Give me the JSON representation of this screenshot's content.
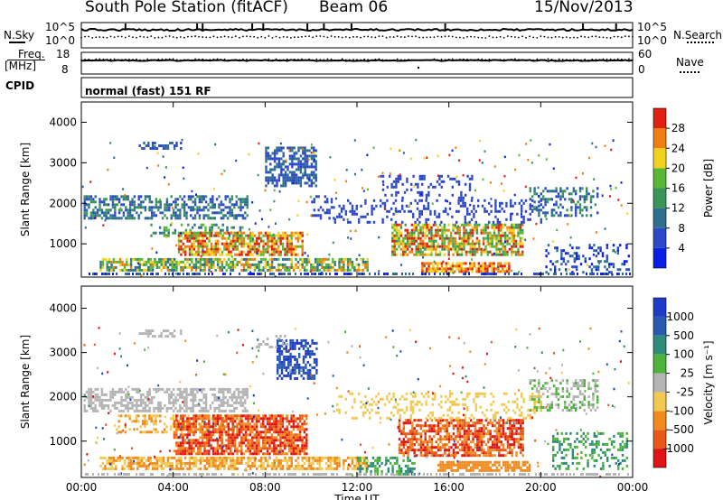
{
  "header": {
    "station": "South Pole Station (fitACF)",
    "beam": "Beam 06",
    "date": "15/Nov/2013"
  },
  "top_panels": {
    "nsky_label": "N.Sky",
    "nsearch_label": "N.Search",
    "noise_ticks": [
      "10^5",
      "10^0"
    ],
    "freq_label_1": "Freq.",
    "freq_label_2": "[MHz]",
    "freq_ticks": [
      "18",
      "8"
    ],
    "nave_label": "Nave",
    "nave_ticks": [
      "60",
      "0"
    ],
    "cpid_label": "CPID",
    "cpid_text": "normal (fast) 151 RF"
  },
  "chart_data": [
    {
      "type": "heatmap",
      "title": "",
      "ylabel": "Slant Range [km]",
      "xlabel": "",
      "yticks": [
        "1000",
        "2000",
        "3000",
        "4000"
      ],
      "ylim": [
        180,
        4500
      ],
      "xlim_hours": [
        0,
        24
      ],
      "colorbar": {
        "label": "Power [dB]",
        "ticks": [
          "4",
          "8",
          "12",
          "16",
          "20",
          "24",
          "28"
        ],
        "range": [
          0,
          32
        ],
        "colors": [
          "#0a1ee6",
          "#2c48c8",
          "#2e6e8e",
          "#3a9656",
          "#58b836",
          "#f0d21e",
          "#f07d10",
          "#e02010"
        ]
      },
      "echo_regions_description": "Rows of echoes: 1600–2200 km (00–07 UT), 2400–3400 km near 08–10 UT, 300–1200 km band throughout with strongest power near 06–10 UT and 14–19 UT"
    },
    {
      "type": "heatmap",
      "title": "",
      "ylabel": "Slant Range [km]",
      "xlabel": "Time UT",
      "xticks": [
        "00:00",
        "04:00",
        "08:00",
        "12:00",
        "16:00",
        "20:00",
        "00:00"
      ],
      "yticks": [
        "1000",
        "2000",
        "3000",
        "4000"
      ],
      "ylim": [
        180,
        4500
      ],
      "xlim_hours": [
        0,
        24
      ],
      "colorbar": {
        "label": "Velocity [m s^-1]",
        "ticks": [
          "1000",
          "500",
          "100",
          "25",
          "-25",
          "-100",
          "-500",
          "-1000"
        ],
        "colors": [
          "#1e3cc8",
          "#2a5ab0",
          "#2e8c7a",
          "#4cb43a",
          "#b4b4b4",
          "#f2c850",
          "#f08a1e",
          "#e85818",
          "#e01414"
        ]
      }
    }
  ]
}
